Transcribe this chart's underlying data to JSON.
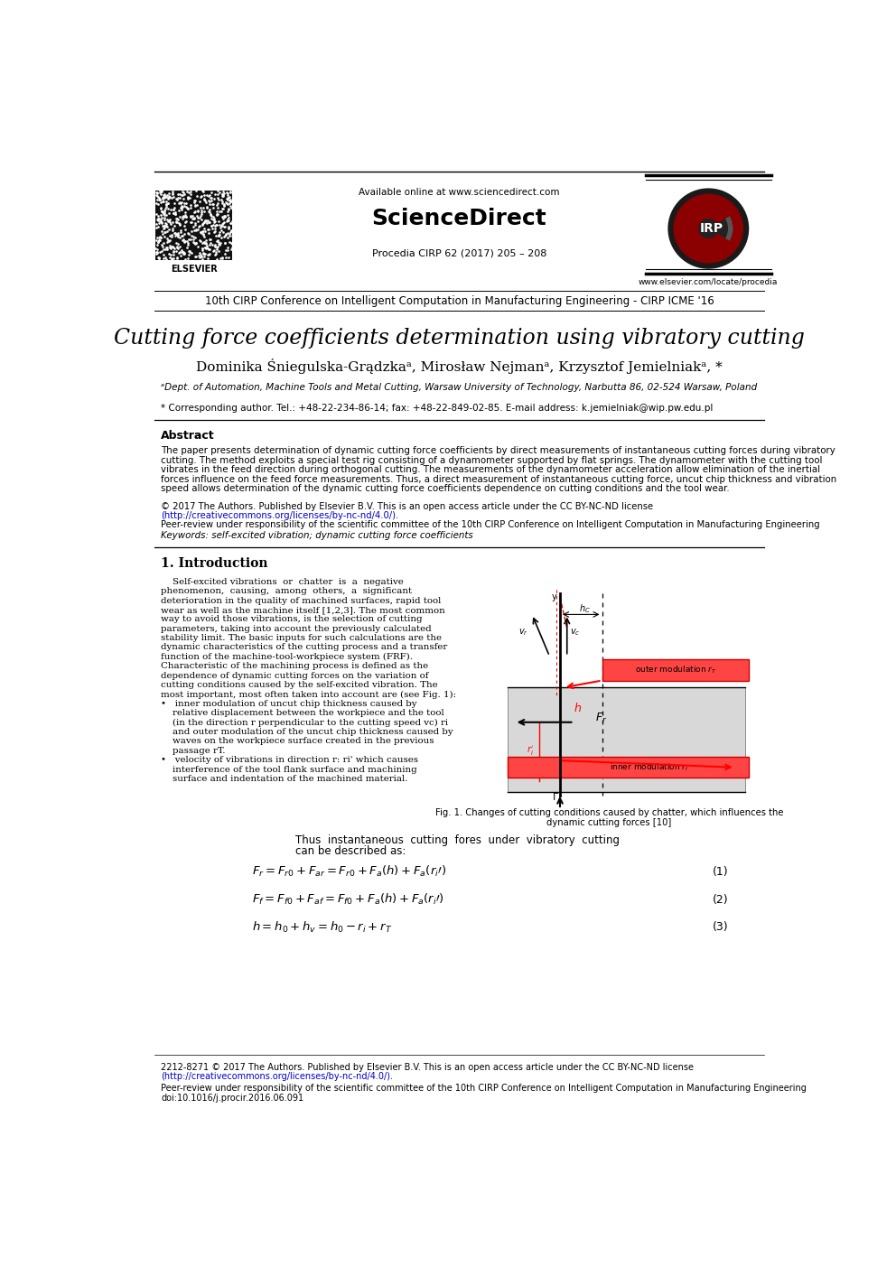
{
  "page_width": 9.92,
  "page_height": 14.03,
  "background_color": "#ffffff",
  "header": {
    "available_online": "Available online at www.sciencedirect.com",
    "sciencedirect": "ScienceDirect",
    "journal": "Procedia CIRP 62 (2017) 205 – 208",
    "website": "www.elsevier.com/locate/procedia"
  },
  "conference_line": "10th CIRP Conference on Intelligent Computation in Manufacturing Engineering - CIRP ICME '16",
  "paper_title": "Cutting force coefficients determination using vibratory cutting",
  "authors": "Dominika Śniegulska-Grądzkaᵃ, Mirosław Nejmanᵃ, Krzysztof Jemielniakᵃ, *",
  "affiliation": "ᵃDept. of Automation, Machine Tools and Metal Cutting, Warsaw University of Technology, Narbutta 86, 02-524 Warsaw, Poland",
  "corresponding": "* Corresponding author. Tel.: +48-22-234-86-14; fax: +48-22-849-02-85. E-mail address: k.jemielniak@wip.pw.edu.pl",
  "abstract_title": "Abstract",
  "abstract_lines": [
    "The paper presents determination of dynamic cutting force coefficients by direct measurements of instantaneous cutting forces during vibratory",
    "cutting. The method exploits a special test rig consisting of a dynamometer supported by flat springs. The dynamometer with the cutting tool",
    "vibrates in the feed direction during orthogonal cutting. The measurements of the dynamometer acceleration allow elimination of the inertial",
    "forces influence on the feed force measurements. Thus, a direct measurement of instantaneous cutting force, uncut chip thickness and vibration",
    "speed allows determination of the dynamic cutting force coefficients dependence on cutting conditions and the tool wear."
  ],
  "copyright_text": "© 2017 The Authors. Published by Elsevier B.V. This is an open access article under the CC BY-NC-ND license",
  "license_url": "(http://creativecommons.org/licenses/by-nc-nd/4.0/).",
  "peer_review": "Peer-review under responsibility of the scientific committee of the 10th CIRP Conference on Intelligent Computation in Manufacturing Engineering",
  "keywords": "Keywords: self-excited vibration; dynamic cutting force coefficients",
  "section1_title": "1. Introduction",
  "intro_lines": [
    "    Self-excited vibrations  or  chatter  is  a  negative",
    "phenomenon,  causing,  among  others,  a  significant",
    "deterioration in the quality of machined surfaces, rapid tool",
    "wear as well as the machine itself [1,2,3]. The most common",
    "way to avoid those vibrations, is the selection of cutting",
    "parameters, taking into account the previously calculated",
    "stability limit. The basic inputs for such calculations are the",
    "dynamic characteristics of the cutting process and a transfer",
    "function of the machine-tool-workpiece system (FRF).",
    "Characteristic of the machining process is defined as the",
    "dependence of dynamic cutting forces on the variation of",
    "cutting conditions caused by the self-excited vibration. The",
    "most important, most often taken into account are (see Fig. 1):"
  ],
  "bullet1_lines": [
    "•   inner modulation of uncut chip thickness caused by",
    "    relative displacement between the workpiece and the tool",
    "    (in the direction r perpendicular to the cutting speed vc) ri",
    "    and outer modulation of the uncut chip thickness caused by",
    "    waves on the workpiece surface created in the previous",
    "    passage rT."
  ],
  "bullet2_lines": [
    "•   velocity of vibrations in direction r: ri' which causes",
    "    interference of the tool flank surface and machining",
    "    surface and indentation of the machined material."
  ],
  "fig1_caption_line1": "Fig. 1. Changes of cutting conditions caused by chatter, which influences the",
  "fig1_caption_line2": "dynamic cutting forces [10]",
  "thus_line1": "Thus  instantaneous  cutting  fores  under  vibratory  cutting",
  "thus_line2": "can be described as:",
  "eq_numbers": [
    "(1)",
    "(2)",
    "(3)"
  ],
  "footer_text1": "2212-8271 © 2017 The Authors. Published by Elsevier B.V. This is an open access article under the CC BY-NC-ND license",
  "footer_url": "(http://creativecommons.org/licenses/by-nc-nd/4.0/).",
  "footer_peer": "Peer-review under responsibility of the scientific committee of the 10th CIRP Conference on Intelligent Computation in Manufacturing Engineering",
  "footer_doi": "doi:10.1016/j.procir.2016.06.091",
  "link_color": "#0000cc",
  "elsevier_text": "ELSEVIER"
}
